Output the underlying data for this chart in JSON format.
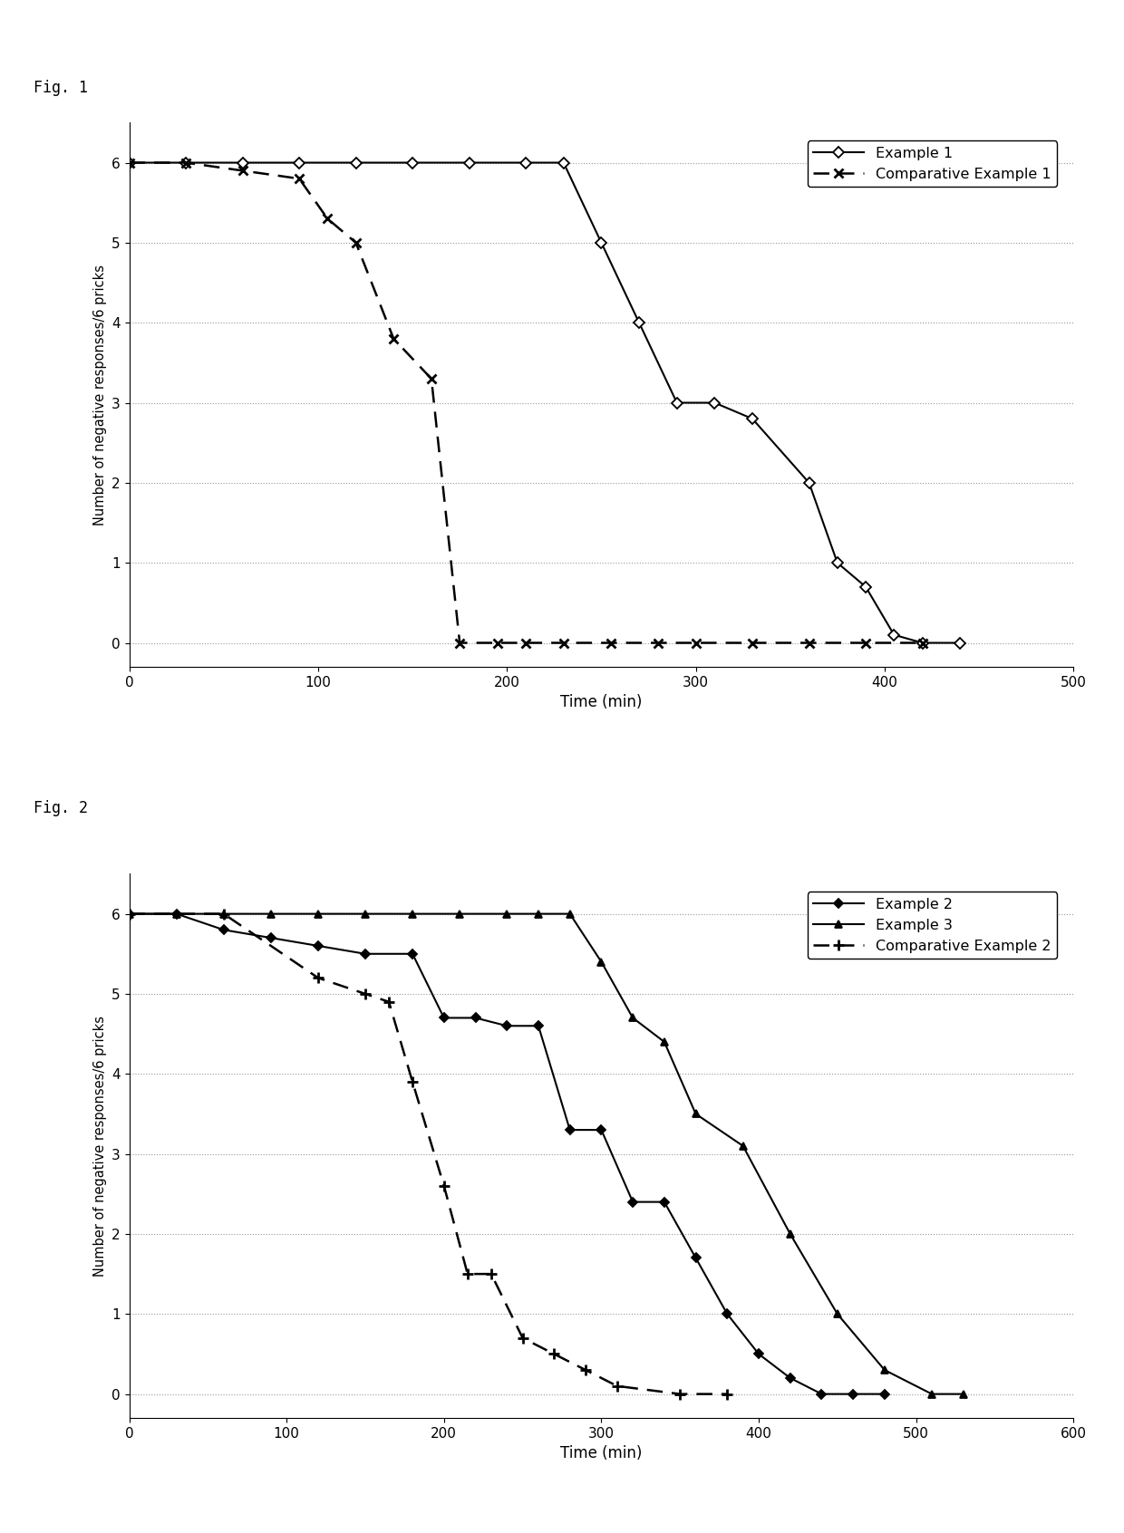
{
  "fig1": {
    "title": "Fig. 1",
    "example1": {
      "x": [
        0,
        30,
        60,
        90,
        120,
        150,
        180,
        210,
        230,
        250,
        270,
        290,
        310,
        330,
        360,
        375,
        390,
        405,
        420,
        440
      ],
      "y": [
        6,
        6,
        6,
        6,
        6,
        6,
        6,
        6,
        6,
        5,
        4,
        3,
        3,
        2.8,
        2,
        1,
        0.7,
        0.1,
        0,
        0
      ],
      "label": "Example 1"
    },
    "comp_example1": {
      "x": [
        0,
        30,
        60,
        90,
        105,
        120,
        140,
        160,
        175,
        195,
        210,
        230,
        255,
        280,
        300,
        330,
        360,
        390,
        420
      ],
      "y": [
        6,
        6,
        5.9,
        5.8,
        5.3,
        5.0,
        3.8,
        3.3,
        0,
        0,
        0,
        0,
        0,
        0,
        0,
        0,
        0,
        0,
        0
      ],
      "label": "Comparative Example 1"
    },
    "xlabel": "Time (min)",
    "ylabel": "Number of negative responses/6 pricks",
    "xlim": [
      0,
      500
    ],
    "ylim": [
      -0.3,
      6.5
    ],
    "xticks": [
      0,
      100,
      200,
      300,
      400,
      500
    ],
    "yticks": [
      0,
      1,
      2,
      3,
      4,
      5,
      6
    ]
  },
  "fig2": {
    "title": "Fig. 2",
    "example2": {
      "x": [
        0,
        30,
        60,
        90,
        120,
        150,
        180,
        200,
        220,
        240,
        260,
        280,
        300,
        320,
        340,
        360,
        380,
        400,
        420,
        440,
        460,
        480
      ],
      "y": [
        6,
        6,
        5.8,
        5.7,
        5.6,
        5.5,
        5.5,
        4.7,
        4.7,
        4.6,
        4.6,
        3.3,
        3.3,
        2.4,
        2.4,
        1.7,
        1.0,
        0.5,
        0.2,
        0,
        0,
        0
      ],
      "label": "Example 2"
    },
    "example3": {
      "x": [
        0,
        30,
        60,
        90,
        120,
        150,
        180,
        210,
        240,
        260,
        280,
        300,
        320,
        340,
        360,
        390,
        420,
        450,
        480,
        510,
        530
      ],
      "y": [
        6,
        6,
        6,
        6,
        6,
        6,
        6,
        6,
        6,
        6,
        6,
        5.4,
        4.7,
        4.4,
        3.5,
        3.1,
        2.0,
        1.0,
        0.3,
        0,
        0
      ],
      "label": "Example 3"
    },
    "comp_example2": {
      "x": [
        0,
        60,
        120,
        150,
        165,
        180,
        200,
        215,
        230,
        250,
        270,
        290,
        310,
        350,
        380
      ],
      "y": [
        6,
        6,
        5.2,
        5.0,
        4.9,
        3.9,
        2.6,
        1.5,
        1.5,
        0.7,
        0.5,
        0.3,
        0.1,
        0,
        0
      ],
      "label": "Comparative Example 2"
    },
    "xlabel": "Time (min)",
    "ylabel": "Number of negative responses/6 pricks",
    "xlim": [
      0,
      600
    ],
    "ylim": [
      -0.3,
      6.5
    ],
    "xticks": [
      0,
      100,
      200,
      300,
      400,
      500,
      600
    ],
    "yticks": [
      0,
      1,
      2,
      3,
      4,
      5,
      6
    ]
  },
  "background_color": "#ffffff",
  "line_color": "#000000",
  "grid_color": "#999999"
}
